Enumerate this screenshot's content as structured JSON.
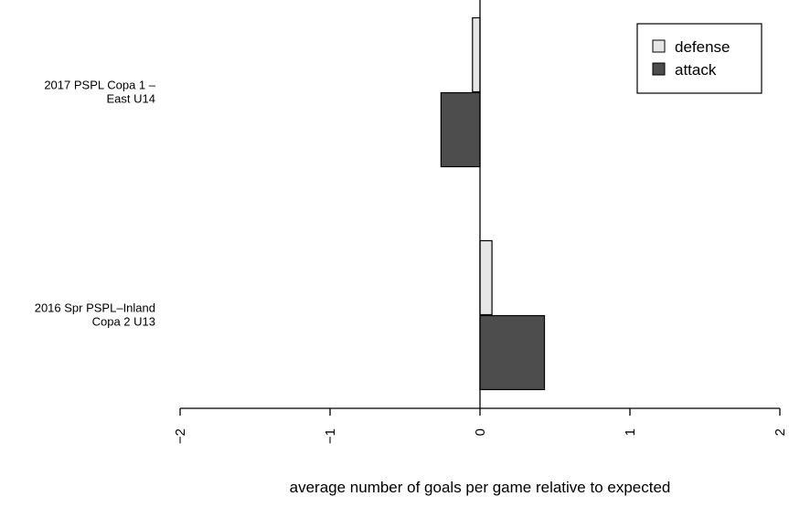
{
  "chart_data": {
    "type": "bar",
    "orientation": "horizontal",
    "categories": [
      [
        "2017 PSPL Copa 1 –",
        "East U14"
      ],
      [
        "2016 Spr PSPL–Inland",
        "Copa 2 U13"
      ]
    ],
    "series": [
      {
        "name": "defense",
        "color": "#e6e6e6",
        "values": [
          -0.05,
          0.08
        ]
      },
      {
        "name": "attack",
        "color": "#4d4d4d",
        "values": [
          -0.26,
          0.43
        ]
      }
    ],
    "xlabel": "average number of goals per game relative to expected",
    "ylabel": "",
    "title": "",
    "xlim": [
      -2,
      2
    ],
    "x_ticks": [
      "−2",
      "−1",
      "0",
      "1",
      "2"
    ],
    "tick_label_rotation": "vertical",
    "zero_line": true,
    "grid": false,
    "legend_position": "top-right"
  }
}
